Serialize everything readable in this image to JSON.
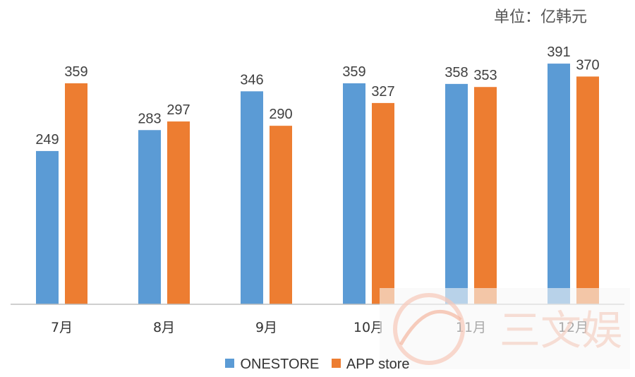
{
  "unit_label": "单位：亿韩元",
  "colors": {
    "onestore": "#5B9BD5",
    "appstore": "#ED7D31",
    "axis": "#BFBFBF",
    "label": "#404040"
  },
  "legend": {
    "onestore": "ONESTORE",
    "appstore": "APP store"
  },
  "watermark": {
    "text": "三文娱"
  },
  "chart_data": {
    "type": "bar",
    "title": "",
    "xlabel": "",
    "ylabel": "",
    "ylim": [
      0,
      400
    ],
    "legend_position": "bottom",
    "grid": false,
    "categories": [
      "7月",
      "8月",
      "9月",
      "10月",
      "11月",
      "12月"
    ],
    "series": [
      {
        "name": "ONESTORE",
        "values": [
          249,
          283,
          346,
          359,
          358,
          391
        ]
      },
      {
        "name": "APP store",
        "values": [
          359,
          297,
          290,
          327,
          353,
          370
        ]
      }
    ]
  }
}
